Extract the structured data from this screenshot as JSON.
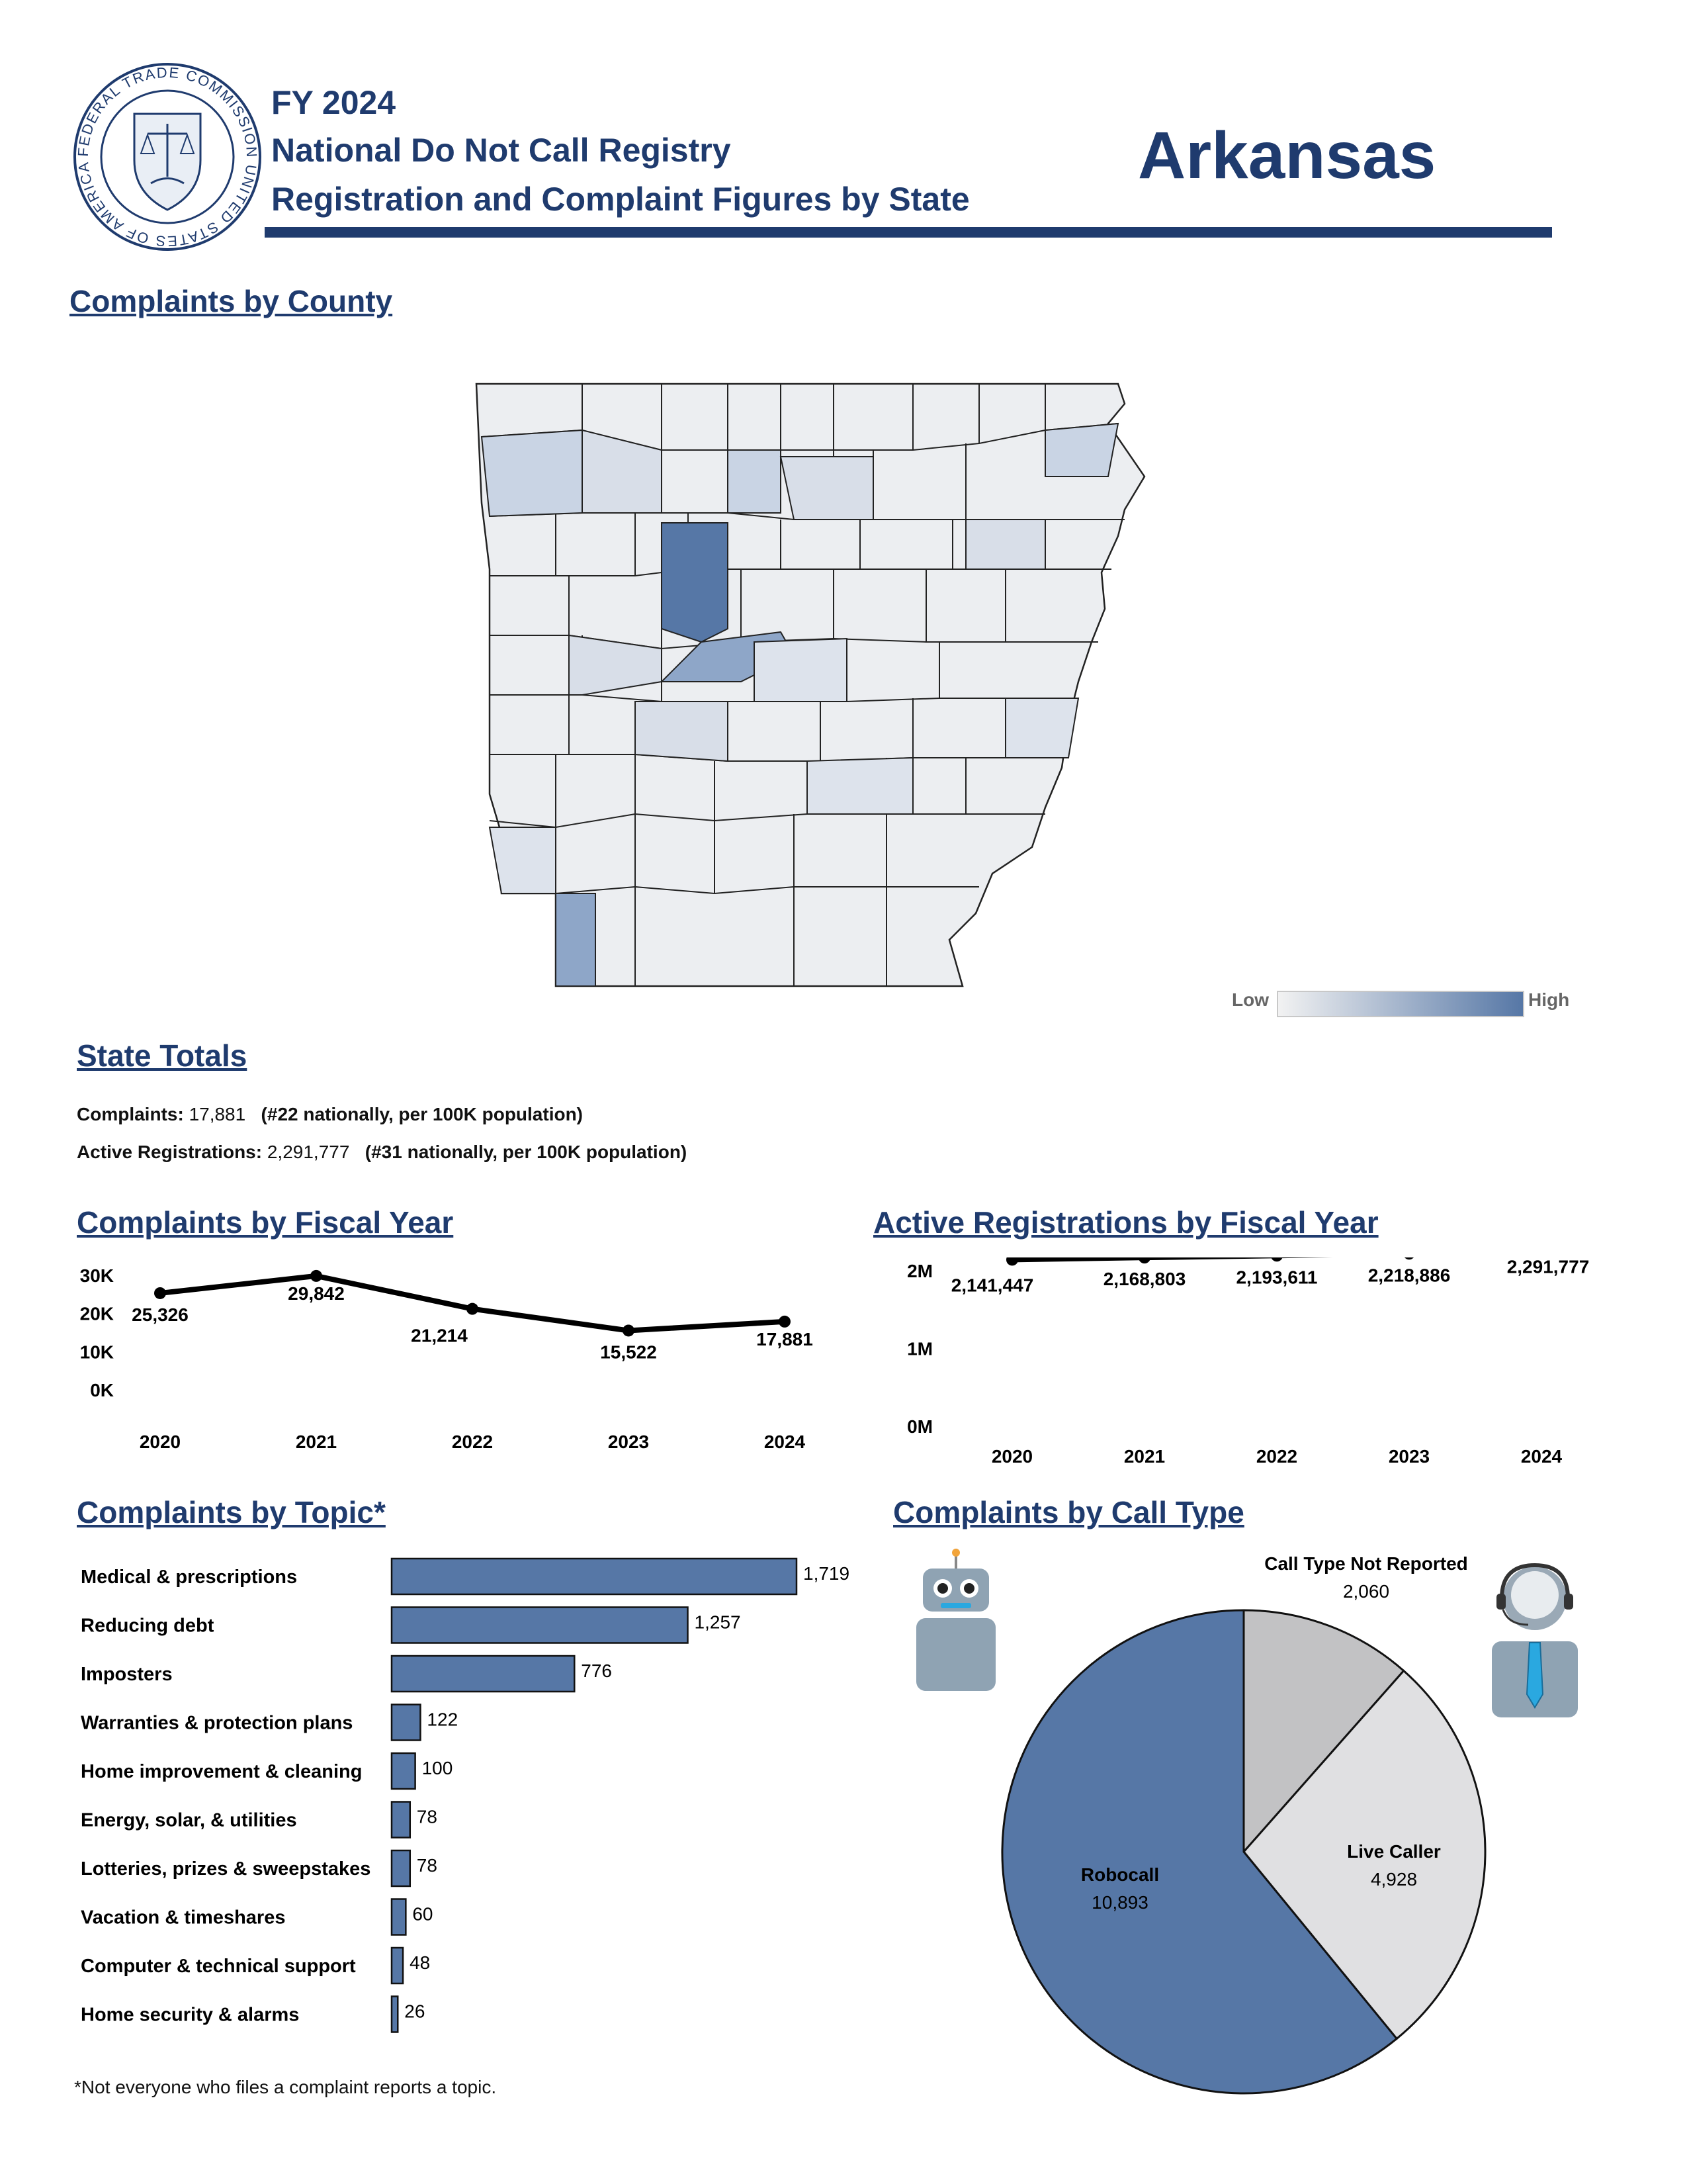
{
  "header": {
    "line1": "FY 2024",
    "line2": "National Do Not Call Registry",
    "line3": "Registration and Complaint Figures by State",
    "state": "Arkansas",
    "seal_text": "FEDERAL TRADE COMMISSION UNITED STATES OF AMERICA MCMXV"
  },
  "map": {
    "title": "Complaints by County",
    "legend_low": "Low",
    "legend_high": "High"
  },
  "totals": {
    "title": "State Totals",
    "complaints_label": "Complaints:",
    "complaints_value": "17,881",
    "complaints_rank": "(#22 nationally, per 100K population)",
    "registrations_label": "Active Registrations:",
    "registrations_value": "2,291,777",
    "registrations_rank": "(#31 nationally, per 100K population)"
  },
  "footnote": "*Not everyone who files a complaint reports a topic.",
  "colors": {
    "navy": "#1f3b6e",
    "bar": "#5677a6",
    "robocall": "#5677a6",
    "live": "#e0e0e2",
    "not_reported": "#c2c2c4"
  },
  "chart_data": [
    {
      "type": "line",
      "title": "Complaints by Fiscal Year",
      "x": [
        "2020",
        "2021",
        "2022",
        "2023",
        "2024"
      ],
      "values": [
        25326,
        29842,
        21214,
        15522,
        17881
      ],
      "labels": [
        "25,326",
        "29,842",
        "21,214",
        "15,522",
        "17,881"
      ],
      "yticks": [
        "0K",
        "10K",
        "20K",
        "30K"
      ],
      "ylim": [
        0,
        30000
      ]
    },
    {
      "type": "line",
      "title": "Active Registrations by Fiscal Year",
      "x": [
        "2020",
        "2021",
        "2022",
        "2023",
        "2024"
      ],
      "values": [
        2141447,
        2168803,
        2193611,
        2218886,
        2291777
      ],
      "labels": [
        "2,141,447",
        "2,168,803",
        "2,193,611",
        "2,218,886",
        "2,291,777"
      ],
      "yticks": [
        "0M",
        "1M",
        "2M"
      ],
      "ylim": [
        0,
        2000000
      ]
    },
    {
      "type": "bar",
      "title": "Complaints by Topic*",
      "categories": [
        "Medical & prescriptions",
        "Reducing debt",
        "Imposters",
        "Warranties & protection plans",
        "Home improvement & cleaning",
        "Energy, solar, & utilities",
        "Lotteries, prizes & sweepstakes",
        "Vacation & timeshares",
        "Computer & technical support",
        "Home security & alarms"
      ],
      "values": [
        1719,
        1257,
        776,
        122,
        100,
        78,
        78,
        60,
        48,
        26
      ],
      "labels": [
        "1,719",
        "1,257",
        "776",
        "122",
        "100",
        "78",
        "78",
        "60",
        "48",
        "26"
      ]
    },
    {
      "type": "pie",
      "title": "Complaints by Call Type",
      "slices": [
        {
          "name": "Call Type Not Reported",
          "value": 2060,
          "label": "2,060",
          "color": "#c2c2c4"
        },
        {
          "name": "Live Caller",
          "value": 4928,
          "label": "4,928",
          "color": "#e0e0e2"
        },
        {
          "name": "Robocall",
          "value": 10893,
          "label": "10,893",
          "color": "#5677a6"
        }
      ]
    }
  ]
}
